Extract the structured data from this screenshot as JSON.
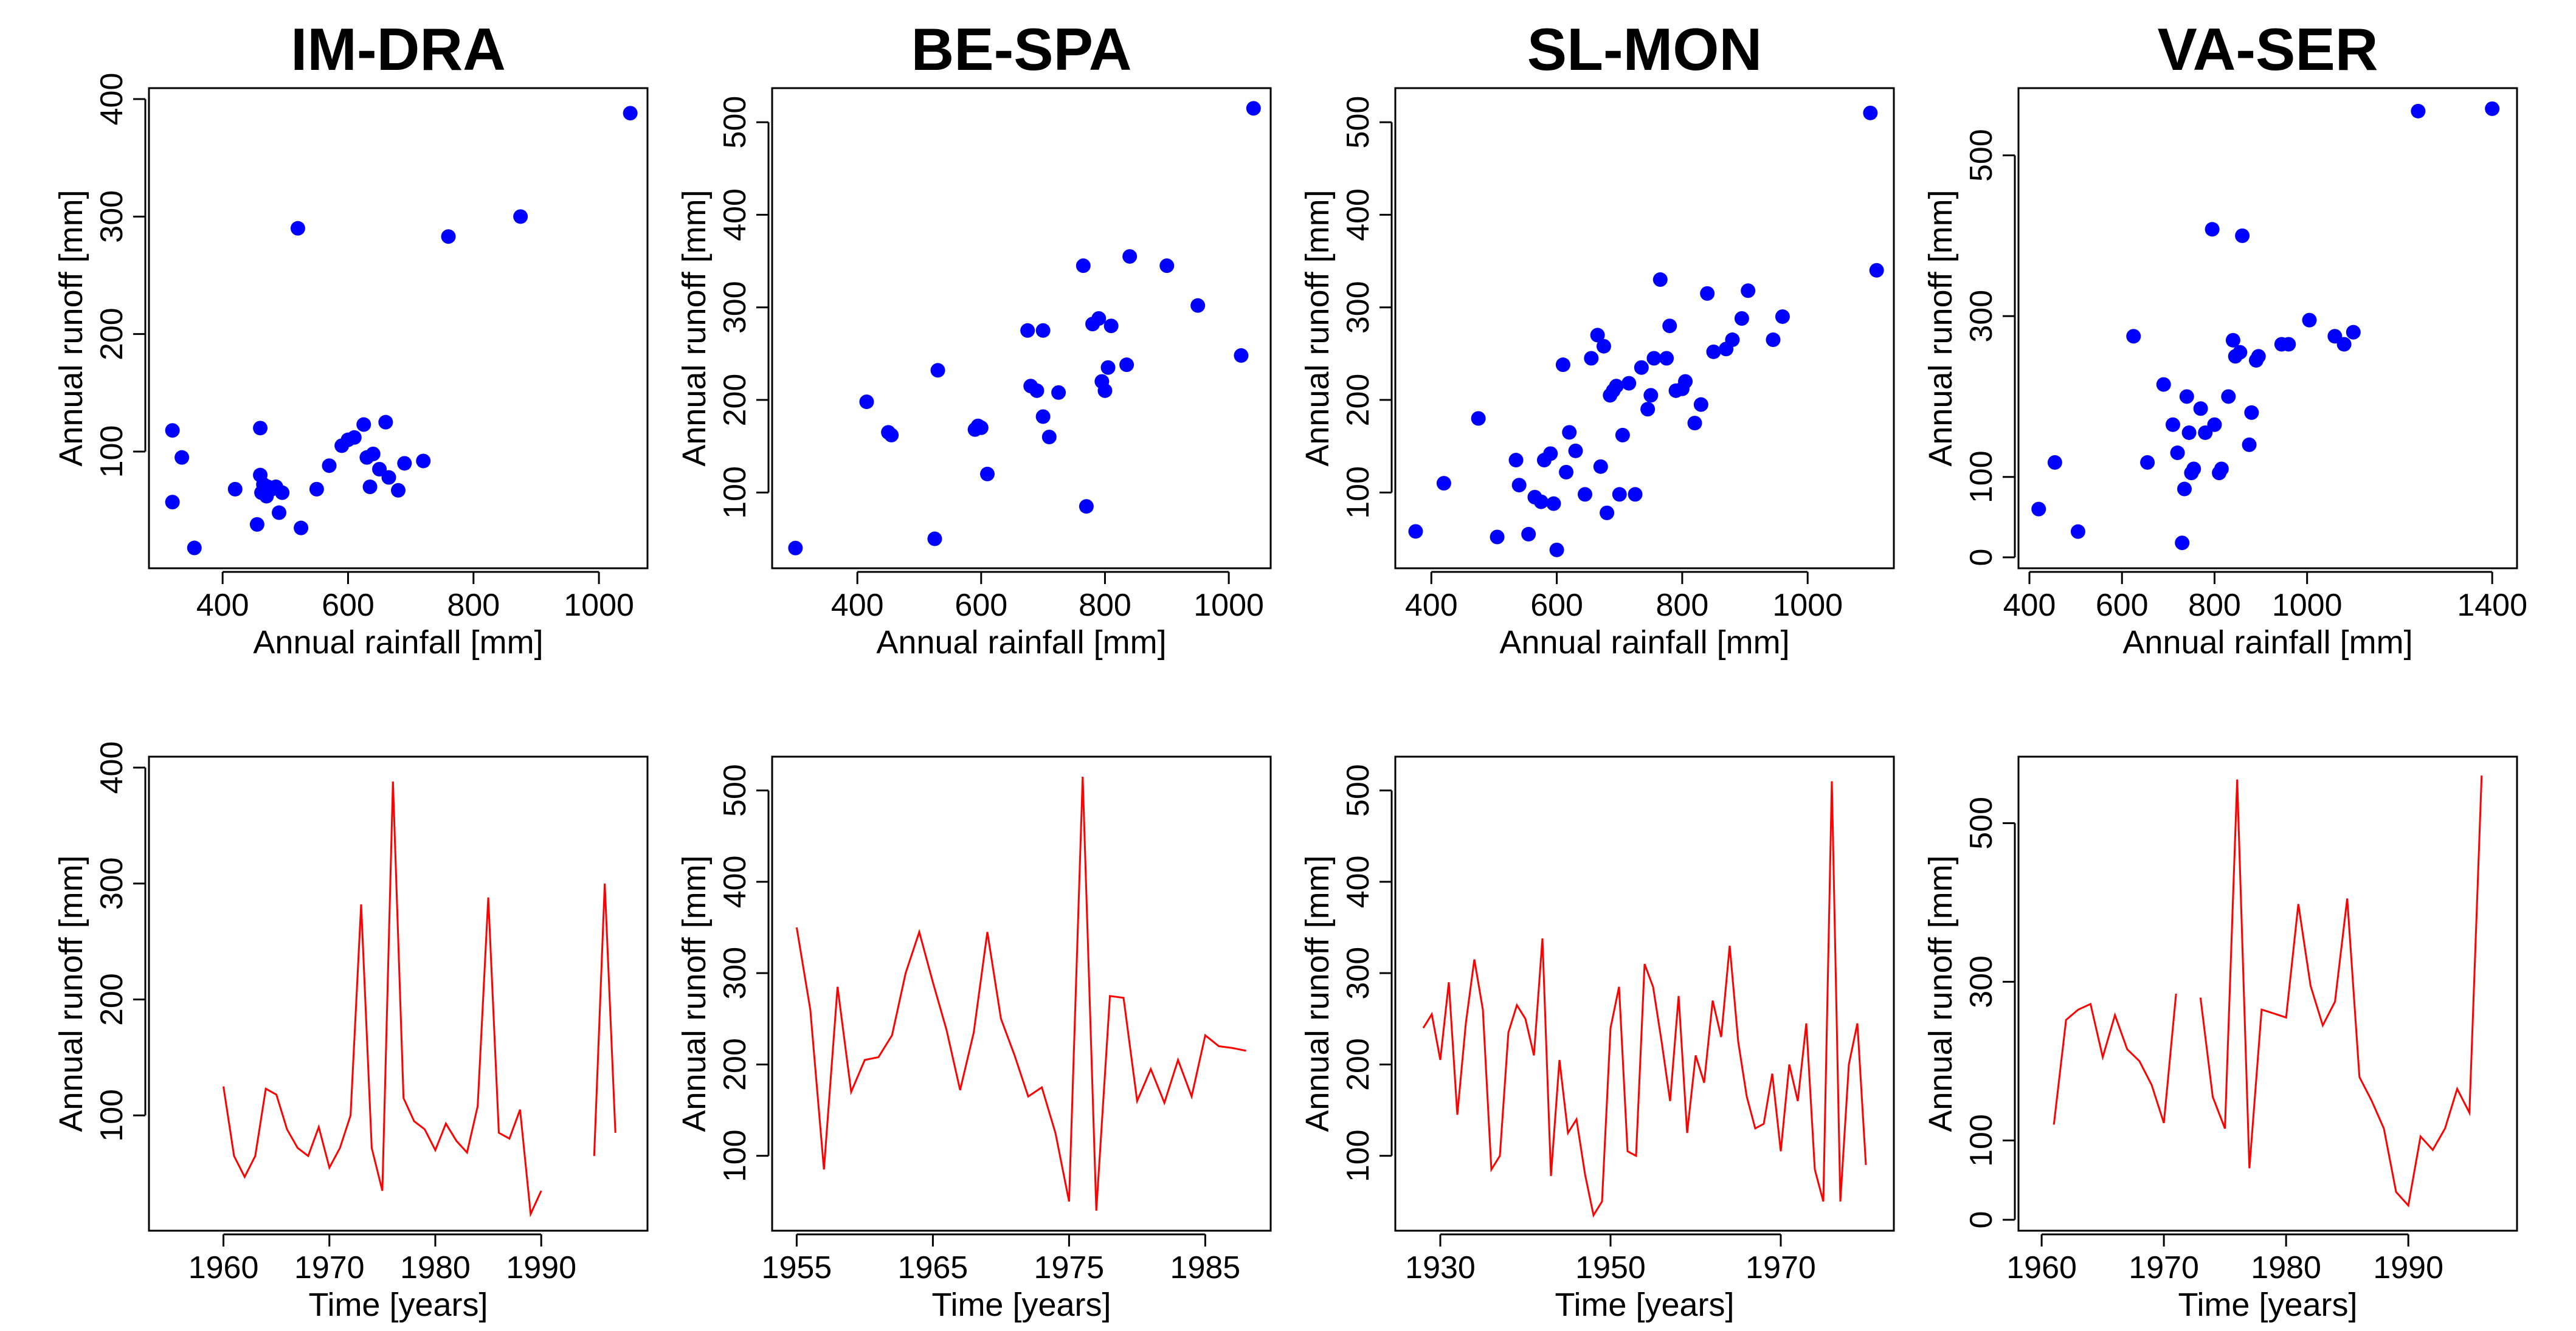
{
  "chart_data": [
    {
      "type": "scatter",
      "title": "IM-DRA",
      "xlabel": "Annual rainfall [mm]",
      "ylabel": "Annual runoff [mm]",
      "xlim": [
        300,
        1060
      ],
      "ylim": [
        10,
        400
      ],
      "xticks": [
        400,
        600,
        800,
        1000
      ],
      "yticks": [
        100,
        200,
        300,
        400
      ],
      "x": [
        320,
        320,
        335,
        355,
        420,
        455,
        460,
        460,
        462,
        465,
        470,
        472,
        478,
        485,
        490,
        495,
        520,
        525,
        550,
        570,
        590,
        600,
        610,
        625,
        630,
        635,
        640,
        650,
        660,
        665,
        680,
        690,
        720,
        760,
        875,
        1050
      ],
      "y": [
        118,
        57,
        95,
        18,
        68,
        38,
        120,
        80,
        65,
        72,
        62,
        70,
        68,
        70,
        48,
        65,
        290,
        35,
        68,
        88,
        105,
        110,
        112,
        123,
        95,
        70,
        98,
        85,
        125,
        78,
        67,
        90,
        92,
        283,
        300,
        388
      ]
    },
    {
      "type": "scatter",
      "title": "BE-SPA",
      "xlabel": "Annual rainfall [mm]",
      "ylabel": "Annual runoff [mm]",
      "xlim": [
        280,
        1050
      ],
      "ylim": [
        30,
        525
      ],
      "xticks": [
        400,
        600,
        800,
        1000
      ],
      "yticks": [
        100,
        200,
        300,
        400,
        500
      ],
      "x": [
        300,
        415,
        450,
        455,
        525,
        530,
        590,
        595,
        600,
        610,
        675,
        680,
        690,
        700,
        700,
        710,
        725,
        765,
        770,
        780,
        790,
        795,
        800,
        805,
        810,
        835,
        840,
        900,
        950,
        1020,
        1040
      ],
      "y": [
        40,
        198,
        165,
        162,
        50,
        232,
        168,
        172,
        170,
        120,
        275,
        215,
        210,
        275,
        182,
        160,
        208,
        345,
        85,
        282,
        288,
        220,
        210,
        235,
        280,
        238,
        355,
        345,
        302,
        248,
        515
      ]
    },
    {
      "type": "scatter",
      "title": "SL-MON",
      "xlabel": "Annual rainfall [mm]",
      "ylabel": "Annual runoff [mm]",
      "xlim": [
        360,
        1120
      ],
      "ylim": [
        30,
        525
      ],
      "xticks": [
        400,
        600,
        800,
        1000
      ],
      "yticks": [
        100,
        200,
        300,
        400,
        500
      ],
      "x": [
        375,
        420,
        475,
        505,
        535,
        540,
        555,
        565,
        575,
        580,
        590,
        595,
        600,
        610,
        615,
        620,
        630,
        645,
        655,
        665,
        670,
        675,
        680,
        685,
        690,
        695,
        700,
        705,
        715,
        725,
        735,
        745,
        750,
        755,
        765,
        775,
        780,
        790,
        800,
        805,
        820,
        830,
        840,
        850,
        870,
        880,
        895,
        905,
        945,
        960,
        1100,
        1110
      ],
      "y": [
        58,
        110,
        180,
        52,
        135,
        108,
        55,
        95,
        90,
        135,
        142,
        88,
        38,
        238,
        122,
        165,
        145,
        98,
        245,
        270,
        128,
        258,
        78,
        205,
        210,
        215,
        98,
        162,
        218,
        98,
        235,
        190,
        205,
        245,
        330,
        245,
        280,
        210,
        212,
        220,
        175,
        195,
        315,
        252,
        255,
        265,
        288,
        318,
        265,
        290,
        510,
        340
      ]
    },
    {
      "type": "scatter",
      "title": "VA-SER",
      "xlabel": "Annual rainfall [mm]",
      "ylabel": "Annual runoff [mm]",
      "xlim": [
        400,
        1430
      ],
      "ylim": [
        0,
        570
      ],
      "xticks": [
        400,
        600,
        800,
        1000,
        1400
      ],
      "yticks": [
        0,
        100,
        300,
        500
      ],
      "x": [
        420,
        455,
        505,
        625,
        655,
        690,
        710,
        720,
        730,
        735,
        740,
        745,
        750,
        755,
        770,
        780,
        795,
        800,
        810,
        815,
        830,
        840,
        845,
        855,
        860,
        875,
        880,
        890,
        895,
        945,
        960,
        1005,
        1060,
        1080,
        1100,
        1240,
        1400
      ],
      "y": [
        60,
        118,
        32,
        275,
        118,
        215,
        165,
        130,
        18,
        85,
        200,
        155,
        105,
        110,
        185,
        155,
        408,
        165,
        105,
        110,
        200,
        270,
        250,
        255,
        400,
        140,
        180,
        245,
        250,
        265,
        265,
        295,
        275,
        265,
        280,
        555,
        558
      ]
    },
    {
      "type": "line",
      "title": "",
      "xlabel": "Time [years]",
      "ylabel": "Annual runoff [mm]",
      "xlim": [
        1954,
        1999
      ],
      "ylim": [
        10,
        400
      ],
      "xticks": [
        1960,
        1970,
        1980,
        1990
      ],
      "yticks": [
        100,
        200,
        300,
        400
      ],
      "x": [
        1960,
        1961,
        1962,
        1963,
        1964,
        1965,
        1966,
        1967,
        1968,
        1969,
        1970,
        1971,
        1972,
        1973,
        1974,
        1975,
        1976,
        1977,
        1978,
        1979,
        1980,
        1981,
        1982,
        1983,
        1984,
        1985,
        1986,
        1987,
        1988,
        1989,
        1990,
        1991,
        1992,
        1993,
        1994,
        1995,
        1996,
        1997
      ],
      "y": [
        125,
        65,
        47,
        65,
        123,
        118,
        88,
        72,
        65,
        90,
        55,
        72,
        100,
        282,
        72,
        35,
        388,
        115,
        95,
        88,
        70,
        93,
        78,
        68,
        108,
        288,
        85,
        80,
        105,
        15,
        35,
        null,
        null,
        null,
        null,
        65,
        300,
        85
      ]
    },
    {
      "type": "line",
      "title": "",
      "xlabel": "Time [years]",
      "ylabel": "Annual runoff [mm]",
      "xlim": [
        1954,
        1989
      ],
      "ylim": [
        30,
        525
      ],
      "xticks": [
        1955,
        1965,
        1975,
        1985
      ],
      "yticks": [
        100,
        200,
        300,
        400,
        500
      ],
      "x": [
        1955,
        1956,
        1957,
        1958,
        1959,
        1960,
        1961,
        1962,
        1963,
        1964,
        1965,
        1966,
        1967,
        1968,
        1969,
        1970,
        1971,
        1972,
        1973,
        1974,
        1975,
        1976,
        1977,
        1978,
        1979,
        1980,
        1981,
        1982,
        1983,
        1984,
        1985,
        1986,
        1987,
        1988
      ],
      "y": [
        350,
        260,
        85,
        285,
        170,
        205,
        208,
        232,
        300,
        345,
        290,
        238,
        172,
        235,
        345,
        250,
        210,
        165,
        175,
        125,
        50,
        515,
        40,
        275,
        273,
        160,
        195,
        158,
        205,
        165,
        232,
        220,
        218,
        215
      ]
    },
    {
      "type": "line",
      "title": "",
      "xlabel": "Time [years]",
      "ylabel": "Annual runoff [mm]",
      "xlim": [
        1926,
        1982
      ],
      "ylim": [
        30,
        525
      ],
      "xticks": [
        1930,
        1950,
        1970
      ],
      "yticks": [
        100,
        200,
        300,
        400,
        500
      ],
      "x": [
        1928,
        1929,
        1930,
        1931,
        1932,
        1933,
        1934,
        1935,
        1936,
        1937,
        1938,
        1939,
        1940,
        1941,
        1942,
        1943,
        1944,
        1945,
        1946,
        1947,
        1948,
        1949,
        1950,
        1951,
        1952,
        1953,
        1954,
        1955,
        1956,
        1957,
        1958,
        1959,
        1960,
        1961,
        1962,
        1963,
        1964,
        1965,
        1966,
        1967,
        1968,
        1969,
        1970,
        1971,
        1972,
        1973,
        1974,
        1975,
        1976,
        1977,
        1978,
        1979,
        1980
      ],
      "y": [
        240,
        255,
        205,
        290,
        145,
        245,
        315,
        260,
        85,
        100,
        235,
        265,
        250,
        210,
        338,
        78,
        205,
        125,
        140,
        80,
        35,
        50,
        240,
        285,
        105,
        100,
        310,
        285,
        225,
        160,
        275,
        125,
        210,
        180,
        270,
        230,
        330,
        225,
        165,
        130,
        135,
        190,
        105,
        200,
        160,
        245,
        85,
        50,
        510,
        50,
        200,
        245,
        90
      ]
    },
    {
      "type": "line",
      "title": "",
      "xlabel": "Time [years]",
      "ylabel": "Annual runoff [mm]",
      "xlim": [
        1959,
        1998
      ],
      "ylim": [
        0,
        570
      ],
      "xticks": [
        1960,
        1970,
        1980,
        1990
      ],
      "yticks": [
        0,
        100,
        300,
        500
      ],
      "x": [
        1961,
        1962,
        1963,
        1964,
        1965,
        1966,
        1967,
        1968,
        1969,
        1970,
        1971,
        1972,
        1973,
        1974,
        1975,
        1976,
        1977,
        1978,
        1979,
        1980,
        1981,
        1982,
        1983,
        1984,
        1985,
        1986,
        1987,
        1988,
        1989,
        1990,
        1991,
        1992,
        1993,
        1994,
        1995,
        1996,
        1997
      ],
      "y": [
        120,
        252,
        265,
        272,
        205,
        258,
        215,
        200,
        170,
        122,
        285,
        null,
        280,
        155,
        115,
        555,
        65,
        265,
        260,
        255,
        398,
        295,
        245,
        275,
        405,
        180,
        150,
        115,
        35,
        18,
        105,
        88,
        115,
        165,
        135,
        560,
        null
      ]
    }
  ]
}
